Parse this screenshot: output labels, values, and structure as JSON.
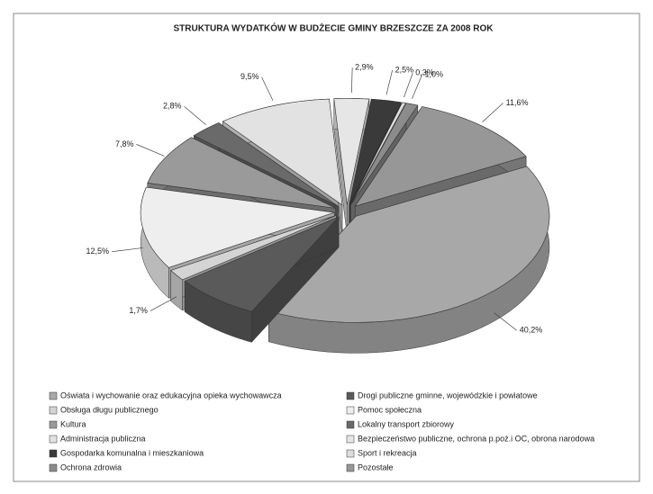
{
  "chart_data": {
    "type": "pie3d",
    "title": "STRUKTURA WYDATKÓW W BUDŻECIE GMINY BRZESZCZE ZA 2008 ROK",
    "categories": [
      "Oświata i wychowanie oraz edukacyjna opieka wychowawcza",
      "Drogi publiczne gminne, wojewódzkie i powiatowe",
      "Obsługa długu publicznego",
      "Pomoc społeczna",
      "Kultura",
      "Lokalny transport zbiorowy",
      "Administracja publiczna",
      "Bezpieczeństwo publiczne, ochrona p.poż.i OC, obrona narodowa",
      "Gospodarka komunalna i mieszkaniowa",
      "Sport i rekreacja",
      "Ochrona zdrowia",
      "Pozostałe"
    ],
    "values": [
      40.2,
      7.2,
      1.7,
      12.5,
      7.8,
      2.8,
      9.5,
      2.9,
      2.5,
      0.3,
      1.0,
      11.6
    ],
    "value_labels": [
      "40,2%",
      null,
      "1,7%",
      "12,5%",
      "7,8%",
      "2,8%",
      "9,5%",
      "2,9%",
      "2,5%",
      "0,3%",
      "1,0%",
      "11,6%"
    ],
    "colors": [
      "#a8a8a8",
      "#5a5a5a",
      "#d4d4d4",
      "#eeeeee",
      "#9a9a9a",
      "#6a6a6a",
      "#e2e2e2",
      "#e6e6e6",
      "#3a3a3a",
      "#dddddd",
      "#8c8c8c",
      "#979797"
    ]
  }
}
